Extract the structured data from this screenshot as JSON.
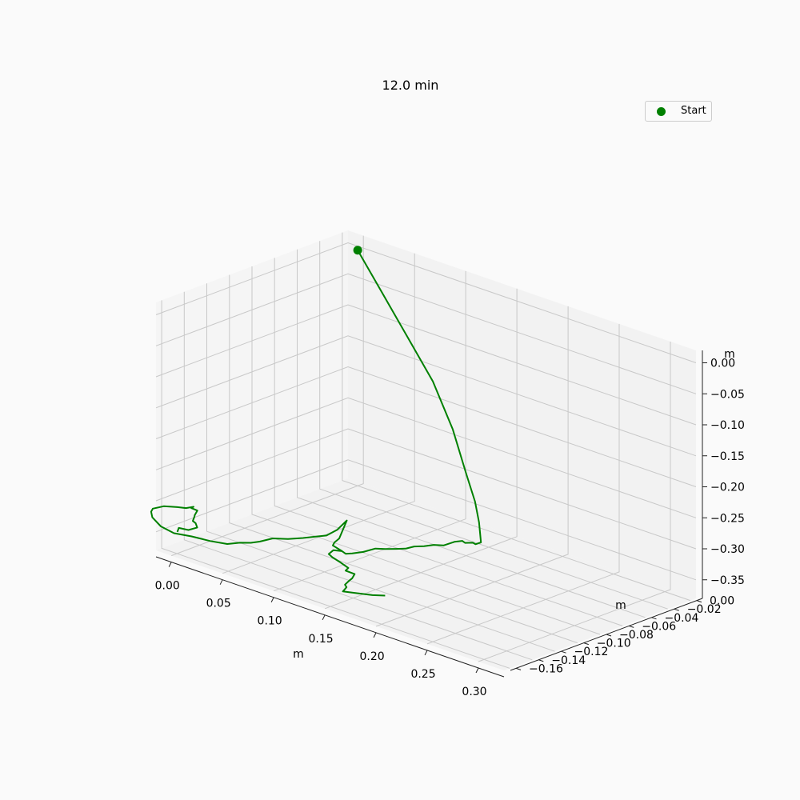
{
  "chart_data": {
    "type": "line3d",
    "title": "12.0 min",
    "xlabel": "m",
    "ylabel": "m",
    "zlabel": "m",
    "xlim": [
      -0.015,
      0.325
    ],
    "ylim": [
      -0.165,
      0.005
    ],
    "zlim": [
      -0.38,
      0.02
    ],
    "x_ticks": [
      "0.00",
      "0.05",
      "0.10",
      "0.15",
      "0.20",
      "0.25",
      "0.30"
    ],
    "y_ticks": [
      "0.00",
      "−0.02",
      "−0.04",
      "−0.06",
      "−0.08",
      "−0.10",
      "−0.12",
      "−0.14",
      "−0.16"
    ],
    "z_ticks": [
      "0.00",
      "−0.05",
      "−0.10",
      "−0.15",
      "−0.20",
      "−0.25",
      "−0.30",
      "−0.35"
    ],
    "grid": true,
    "legend_position": "top-right",
    "line_color": "#008000",
    "series": [
      {
        "name": "Start",
        "start": {
          "x": 0.0,
          "y": 0.0,
          "z": 0.0
        },
        "points": [
          {
            "x": 0.0,
            "y": 0.0,
            "z": 0.0
          },
          {
            "x": 0.03,
            "y": -0.005,
            "z": -0.05
          },
          {
            "x": 0.06,
            "y": -0.01,
            "z": -0.1
          },
          {
            "x": 0.09,
            "y": -0.015,
            "z": -0.15
          },
          {
            "x": 0.115,
            "y": -0.02,
            "z": -0.21
          },
          {
            "x": 0.13,
            "y": -0.022,
            "z": -0.27
          },
          {
            "x": 0.14,
            "y": -0.023,
            "z": -0.31
          },
          {
            "x": 0.145,
            "y": -0.024,
            "z": -0.34
          },
          {
            "x": 0.148,
            "y": -0.025,
            "z": -0.37
          },
          {
            "x": 0.146,
            "y": -0.028,
            "z": -0.372
          },
          {
            "x": 0.14,
            "y": -0.025,
            "z": -0.375
          },
          {
            "x": 0.138,
            "y": -0.03,
            "z": -0.373
          },
          {
            "x": 0.133,
            "y": -0.028,
            "z": -0.374
          },
          {
            "x": 0.132,
            "y": -0.034,
            "z": -0.372
          },
          {
            "x": 0.128,
            "y": -0.04,
            "z": -0.376
          },
          {
            "x": 0.124,
            "y": -0.045,
            "z": -0.374
          },
          {
            "x": 0.12,
            "y": -0.05,
            "z": -0.375
          },
          {
            "x": 0.117,
            "y": -0.056,
            "z": -0.373
          },
          {
            "x": 0.113,
            "y": -0.06,
            "z": -0.376
          },
          {
            "x": 0.11,
            "y": -0.066,
            "z": -0.374
          },
          {
            "x": 0.104,
            "y": -0.07,
            "z": -0.375
          },
          {
            "x": 0.1,
            "y": -0.075,
            "z": -0.373
          },
          {
            "x": 0.096,
            "y": -0.082,
            "z": -0.376
          },
          {
            "x": 0.094,
            "y": -0.09,
            "z": -0.374
          },
          {
            "x": 0.092,
            "y": -0.094,
            "z": -0.373
          },
          {
            "x": 0.084,
            "y": -0.09,
            "z": -0.376
          },
          {
            "x": 0.08,
            "y": -0.094,
            "z": -0.374
          },
          {
            "x": 0.082,
            "y": -0.1,
            "z": -0.375
          },
          {
            "x": 0.09,
            "y": -0.104,
            "z": -0.373
          },
          {
            "x": 0.1,
            "y": -0.106,
            "z": -0.374
          },
          {
            "x": 0.11,
            "y": -0.108,
            "z": -0.376
          },
          {
            "x": 0.114,
            "y": -0.114,
            "z": -0.374
          },
          {
            "x": 0.125,
            "y": -0.116,
            "z": -0.372
          },
          {
            "x": 0.127,
            "y": -0.12,
            "z": -0.375
          },
          {
            "x": 0.13,
            "y": -0.125,
            "z": -0.373
          },
          {
            "x": 0.131,
            "y": -0.13,
            "z": -0.376
          },
          {
            "x": 0.137,
            "y": -0.134,
            "z": -0.374
          },
          {
            "x": 0.14,
            "y": -0.14,
            "z": -0.375
          },
          {
            "x": 0.148,
            "y": -0.139,
            "z": -0.373
          },
          {
            "x": 0.16,
            "y": -0.132,
            "z": -0.375
          },
          {
            "x": 0.168,
            "y": -0.128,
            "z": -0.374
          }
        ],
        "return_path": [
          {
            "x": 0.084,
            "y": -0.09,
            "z": -0.376
          },
          {
            "x": 0.075,
            "y": -0.09,
            "z": -0.372
          },
          {
            "x": 0.07,
            "y": -0.084,
            "z": -0.374
          },
          {
            "x": 0.068,
            "y": -0.078,
            "z": -0.373
          },
          {
            "x": 0.071,
            "y": -0.074,
            "z": -0.345
          },
          {
            "x": 0.066,
            "y": -0.078,
            "z": -0.36
          },
          {
            "x": 0.06,
            "y": -0.082,
            "z": -0.37
          },
          {
            "x": 0.054,
            "y": -0.087,
            "z": -0.372
          },
          {
            "x": 0.048,
            "y": -0.092,
            "z": -0.374
          },
          {
            "x": 0.04,
            "y": -0.098,
            "z": -0.376
          },
          {
            "x": 0.034,
            "y": -0.106,
            "z": -0.373
          },
          {
            "x": 0.03,
            "y": -0.114,
            "z": -0.375
          },
          {
            "x": 0.028,
            "y": -0.12,
            "z": -0.374
          },
          {
            "x": 0.024,
            "y": -0.126,
            "z": -0.372
          },
          {
            "x": 0.016,
            "y": -0.13,
            "z": -0.376
          },
          {
            "x": 0.005,
            "y": -0.135,
            "z": -0.374
          },
          {
            "x": -0.01,
            "y": -0.138,
            "z": -0.373
          },
          {
            "x": -0.025,
            "y": -0.14,
            "z": -0.375
          },
          {
            "x": -0.04,
            "y": -0.138,
            "z": -0.374
          },
          {
            "x": -0.055,
            "y": -0.132,
            "z": -0.372
          },
          {
            "x": -0.065,
            "y": -0.124,
            "z": -0.374
          },
          {
            "x": -0.07,
            "y": -0.118,
            "z": -0.376
          },
          {
            "x": -0.066,
            "y": -0.112,
            "z": -0.374
          },
          {
            "x": -0.057,
            "y": -0.108,
            "z": -0.373
          },
          {
            "x": -0.053,
            "y": -0.104,
            "z": -0.375
          },
          {
            "x": -0.05,
            "y": -0.1,
            "z": -0.374
          },
          {
            "x": -0.048,
            "y": -0.104,
            "z": -0.372
          },
          {
            "x": -0.043,
            "y": -0.103,
            "z": -0.374
          },
          {
            "x": -0.04,
            "y": -0.108,
            "z": -0.376
          },
          {
            "x": -0.036,
            "y": -0.112,
            "z": -0.374
          },
          {
            "x": -0.032,
            "y": -0.117,
            "z": -0.375
          },
          {
            "x": -0.026,
            "y": -0.12,
            "z": -0.373
          },
          {
            "x": -0.02,
            "y": -0.124,
            "z": -0.374
          },
          {
            "x": -0.022,
            "y": -0.13,
            "z": -0.375
          },
          {
            "x": -0.028,
            "y": -0.133,
            "z": -0.373
          },
          {
            "x": -0.025,
            "y": -0.137,
            "z": -0.375
          }
        ]
      }
    ]
  }
}
